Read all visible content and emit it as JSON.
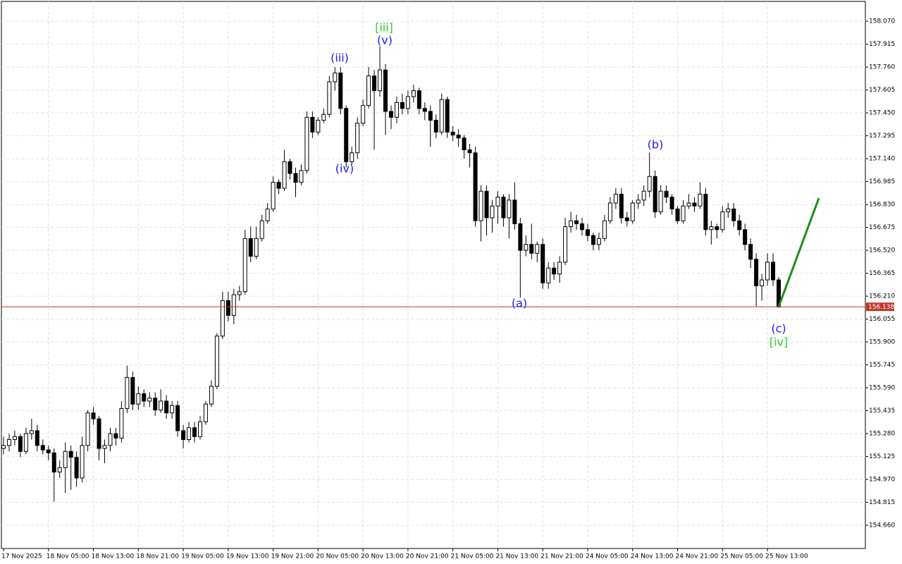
{
  "chart_data": {
    "type": "candlestick",
    "ylim": [
      154.503,
      158.204
    ],
    "yticks": [
      {
        "value": 158.07,
        "label": "158.070"
      },
      {
        "value": 157.915,
        "label": "157.915"
      },
      {
        "value": 157.76,
        "label": "157.760"
      },
      {
        "value": 157.605,
        "label": "157.605"
      },
      {
        "value": 157.45,
        "label": "157.450"
      },
      {
        "value": 157.295,
        "label": "157.295"
      },
      {
        "value": 157.14,
        "label": "157.140"
      },
      {
        "value": 156.985,
        "label": "156.985"
      },
      {
        "value": 156.83,
        "label": "156.830"
      },
      {
        "value": 156.675,
        "label": "156.675"
      },
      {
        "value": 156.52,
        "label": "156.520"
      },
      {
        "value": 156.365,
        "label": "156.365"
      },
      {
        "value": 156.21,
        "label": "156.210"
      },
      {
        "value": 156.055,
        "label": "156.055"
      },
      {
        "value": 155.9,
        "label": "155.900"
      },
      {
        "value": 155.745,
        "label": "155.745"
      },
      {
        "value": 155.59,
        "label": "155.590"
      },
      {
        "value": 155.435,
        "label": "155.435"
      },
      {
        "value": 155.28,
        "label": "155.280"
      },
      {
        "value": 155.125,
        "label": "155.125"
      },
      {
        "value": 154.97,
        "label": "154.970"
      },
      {
        "value": 154.815,
        "label": "154.815"
      },
      {
        "value": 154.66,
        "label": "154.660"
      }
    ],
    "xticks": [
      {
        "value": 0,
        "label": "17 Nov 2025"
      },
      {
        "value": 8,
        "label": "18 Nov 05:00"
      },
      {
        "value": 16,
        "label": "18 Nov 13:00"
      },
      {
        "value": 24,
        "label": "18 Nov 21:00"
      },
      {
        "value": 32,
        "label": "19 Nov 05:00"
      },
      {
        "value": 40,
        "label": "19 Nov 13:00"
      },
      {
        "value": 48,
        "label": "19 Nov 21:00"
      },
      {
        "value": 56,
        "label": "20 Nov 05:00"
      },
      {
        "value": 64,
        "label": "20 Nov 13:00"
      },
      {
        "value": 72,
        "label": "20 Nov 21:00"
      },
      {
        "value": 80,
        "label": "21 Nov 05:00"
      },
      {
        "value": 88,
        "label": "21 Nov 13:00"
      },
      {
        "value": 96,
        "label": "21 Nov 21:00"
      },
      {
        "value": 104,
        "label": "24 Nov 05:00"
      },
      {
        "value": 112,
        "label": "24 Nov 13:00"
      },
      {
        "value": 120,
        "label": "24 Nov 21:00"
      },
      {
        "value": 128,
        "label": "25 Nov 05:00"
      },
      {
        "value": 136,
        "label": "25 Nov 13:00"
      }
    ],
    "grid": true,
    "up_color": "#ffffff",
    "down_color": "#000000",
    "last_price": 156.138,
    "last_price_label": "156.138",
    "last_price_color": "#c0392b",
    "annotations": [
      {
        "text": "[iii]",
        "color": "#33cc33"
      },
      {
        "text": "(v)",
        "color": "#1a1aff"
      },
      {
        "text": "(iii)",
        "color": "#1a1aff"
      },
      {
        "text": "(iv)",
        "color": "#1a1aff"
      },
      {
        "text": "(a)",
        "color": "#1a1aff"
      },
      {
        "text": "(b)",
        "color": "#1a1aff"
      },
      {
        "text": "(c)",
        "color": "#1a1aff"
      },
      {
        "text": "[iv]",
        "color": "#33cc33"
      }
    ],
    "ohlc": [
      [
        155.18,
        155.26,
        155.14,
        155.2
      ],
      [
        155.2,
        155.28,
        155.16,
        155.24
      ],
      [
        155.24,
        155.3,
        155.2,
        155.26
      ],
      [
        155.26,
        155.28,
        155.12,
        155.16
      ],
      [
        155.16,
        155.32,
        155.14,
        155.28
      ],
      [
        155.28,
        155.38,
        155.24,
        155.3
      ],
      [
        155.3,
        155.34,
        155.16,
        155.2
      ],
      [
        155.2,
        155.24,
        155.14,
        155.17
      ],
      [
        155.17,
        155.2,
        155.1,
        155.15
      ],
      [
        155.15,
        155.18,
        154.82,
        155.02
      ],
      [
        155.02,
        155.1,
        154.98,
        155.05
      ],
      [
        155.05,
        155.22,
        154.88,
        155.16
      ],
      [
        155.16,
        155.2,
        154.9,
        155.12
      ],
      [
        155.12,
        155.16,
        154.92,
        154.98
      ],
      [
        154.98,
        155.26,
        154.95,
        155.2
      ],
      [
        155.2,
        155.44,
        155.16,
        155.42
      ],
      [
        155.42,
        155.46,
        155.34,
        155.38
      ],
      [
        155.38,
        155.4,
        155.1,
        155.18
      ],
      [
        155.18,
        155.24,
        155.08,
        155.2
      ],
      [
        155.2,
        155.32,
        155.16,
        155.28
      ],
      [
        155.28,
        155.32,
        155.2,
        155.25
      ],
      [
        155.25,
        155.5,
        155.22,
        155.45
      ],
      [
        155.45,
        155.74,
        155.42,
        155.66
      ],
      [
        155.66,
        155.7,
        155.44,
        155.48
      ],
      [
        155.48,
        155.6,
        155.44,
        155.55
      ],
      [
        155.55,
        155.58,
        155.46,
        155.5
      ],
      [
        155.5,
        155.56,
        155.46,
        155.52
      ],
      [
        155.52,
        155.56,
        155.4,
        155.44
      ],
      [
        155.44,
        155.58,
        155.42,
        155.5
      ],
      [
        155.5,
        155.54,
        155.38,
        155.42
      ],
      [
        155.42,
        155.5,
        155.38,
        155.47
      ],
      [
        155.47,
        155.5,
        155.26,
        155.3
      ],
      [
        155.3,
        155.34,
        155.18,
        155.24
      ],
      [
        155.24,
        155.36,
        155.22,
        155.32
      ],
      [
        155.32,
        155.36,
        155.22,
        155.26
      ],
      [
        155.26,
        155.4,
        155.24,
        155.36
      ],
      [
        155.36,
        155.5,
        155.34,
        155.48
      ],
      [
        155.48,
        155.64,
        155.46,
        155.6
      ],
      [
        155.6,
        155.96,
        155.58,
        155.94
      ],
      [
        155.94,
        156.24,
        155.92,
        156.18
      ],
      [
        156.18,
        156.24,
        156.04,
        156.08
      ],
      [
        156.08,
        156.26,
        156.02,
        156.22
      ],
      [
        156.22,
        156.28,
        156.18,
        156.24
      ],
      [
        156.24,
        156.66,
        156.22,
        156.6
      ],
      [
        156.6,
        156.68,
        156.44,
        156.48
      ],
      [
        156.48,
        156.68,
        156.46,
        156.6
      ],
      [
        156.6,
        156.76,
        156.58,
        156.72
      ],
      [
        156.72,
        156.84,
        156.7,
        156.8
      ],
      [
        156.8,
        157.02,
        156.78,
        156.98
      ],
      [
        156.98,
        157.0,
        156.9,
        156.94
      ],
      [
        156.94,
        157.2,
        156.92,
        157.12
      ],
      [
        157.12,
        157.14,
        157.0,
        157.04
      ],
      [
        157.04,
        157.08,
        156.88,
        156.98
      ],
      [
        156.98,
        157.1,
        156.96,
        157.06
      ],
      [
        157.06,
        157.46,
        157.04,
        157.42
      ],
      [
        157.42,
        157.46,
        157.28,
        157.32
      ],
      [
        157.32,
        157.42,
        157.3,
        157.4
      ],
      [
        157.4,
        157.48,
        157.38,
        157.44
      ],
      [
        157.44,
        157.7,
        157.42,
        157.66
      ],
      [
        157.66,
        157.76,
        157.6,
        157.72
      ],
      [
        157.72,
        157.76,
        157.44,
        157.48
      ],
      [
        157.48,
        157.5,
        157.08,
        157.12
      ],
      [
        157.12,
        157.22,
        157.1,
        157.18
      ],
      [
        157.18,
        157.42,
        157.14,
        157.38
      ],
      [
        157.38,
        157.54,
        157.36,
        157.5
      ],
      [
        157.5,
        157.76,
        157.48,
        157.7
      ],
      [
        157.7,
        157.74,
        157.2,
        157.6
      ],
      [
        157.6,
        157.9,
        157.56,
        157.74
      ],
      [
        157.74,
        157.78,
        157.3,
        157.46
      ],
      [
        157.46,
        157.5,
        157.34,
        157.42
      ],
      [
        157.42,
        157.56,
        157.38,
        157.52
      ],
      [
        157.52,
        157.58,
        157.44,
        157.48
      ],
      [
        157.48,
        157.6,
        157.44,
        157.56
      ],
      [
        157.56,
        157.64,
        157.52,
        157.6
      ],
      [
        157.6,
        157.62,
        157.44,
        157.48
      ],
      [
        157.48,
        157.52,
        157.4,
        157.46
      ],
      [
        157.46,
        157.5,
        157.22,
        157.4
      ],
      [
        157.4,
        157.44,
        157.28,
        157.32
      ],
      [
        157.32,
        157.58,
        157.3,
        157.54
      ],
      [
        157.54,
        157.56,
        157.28,
        157.32
      ],
      [
        157.32,
        157.36,
        157.26,
        157.3
      ],
      [
        157.3,
        157.34,
        157.22,
        157.28
      ],
      [
        157.28,
        157.3,
        157.14,
        157.2
      ],
      [
        157.2,
        157.24,
        157.08,
        157.18
      ],
      [
        157.18,
        157.22,
        156.68,
        156.72
      ],
      [
        156.72,
        156.96,
        156.58,
        156.92
      ],
      [
        156.92,
        156.96,
        156.62,
        156.74
      ],
      [
        156.74,
        156.86,
        156.64,
        156.82
      ],
      [
        156.82,
        156.92,
        156.7,
        156.88
      ],
      [
        156.88,
        156.9,
        156.68,
        156.74
      ],
      [
        156.74,
        156.9,
        156.6,
        156.86
      ],
      [
        156.86,
        156.98,
        156.66,
        156.7
      ],
      [
        156.7,
        156.74,
        156.2,
        156.52
      ],
      [
        156.52,
        156.62,
        156.48,
        156.56
      ],
      [
        156.56,
        156.7,
        156.46,
        156.5
      ],
      [
        156.5,
        156.58,
        156.44,
        156.56
      ],
      [
        156.56,
        156.6,
        156.26,
        156.3
      ],
      [
        156.3,
        156.44,
        156.26,
        156.4
      ],
      [
        156.4,
        156.44,
        156.32,
        156.36
      ],
      [
        156.36,
        156.48,
        156.3,
        156.44
      ],
      [
        156.44,
        156.74,
        156.42,
        156.68
      ],
      [
        156.68,
        156.78,
        156.64,
        156.72
      ],
      [
        156.72,
        156.76,
        156.66,
        156.7
      ],
      [
        156.7,
        156.74,
        156.62,
        156.66
      ],
      [
        156.66,
        156.7,
        156.58,
        156.62
      ],
      [
        156.62,
        156.64,
        156.52,
        156.56
      ],
      [
        156.56,
        156.64,
        156.52,
        156.6
      ],
      [
        156.6,
        156.76,
        156.58,
        156.72
      ],
      [
        156.72,
        156.88,
        156.7,
        156.84
      ],
      [
        156.84,
        156.94,
        156.8,
        156.9
      ],
      [
        156.9,
        156.94,
        156.7,
        156.74
      ],
      [
        156.74,
        156.78,
        156.68,
        156.72
      ],
      [
        156.72,
        156.86,
        156.7,
        156.84
      ],
      [
        156.84,
        156.9,
        156.8,
        156.86
      ],
      [
        156.86,
        156.96,
        156.82,
        156.92
      ],
      [
        156.92,
        157.18,
        156.88,
        157.02
      ],
      [
        157.02,
        157.06,
        156.74,
        156.78
      ],
      [
        156.78,
        156.96,
        156.76,
        156.92
      ],
      [
        156.92,
        156.96,
        156.84,
        156.88
      ],
      [
        156.88,
        156.9,
        156.76,
        156.8
      ],
      [
        156.8,
        156.82,
        156.7,
        156.72
      ],
      [
        156.72,
        156.86,
        156.7,
        156.82
      ],
      [
        156.82,
        156.9,
        156.8,
        156.84
      ],
      [
        156.84,
        156.88,
        156.78,
        156.82
      ],
      [
        156.82,
        156.98,
        156.8,
        156.9
      ],
      [
        156.9,
        156.94,
        156.62,
        156.66
      ],
      [
        156.66,
        156.72,
        156.56,
        156.68
      ],
      [
        156.68,
        156.7,
        156.6,
        156.66
      ],
      [
        156.66,
        156.82,
        156.64,
        156.78
      ],
      [
        156.78,
        156.84,
        156.74,
        156.8
      ],
      [
        156.8,
        156.84,
        156.68,
        156.72
      ],
      [
        156.72,
        156.76,
        156.62,
        156.66
      ],
      [
        156.66,
        156.7,
        156.52,
        156.56
      ],
      [
        156.56,
        156.6,
        156.4,
        156.46
      ],
      [
        156.46,
        156.5,
        156.14,
        156.28
      ],
      [
        156.28,
        156.36,
        156.18,
        156.32
      ],
      [
        156.32,
        156.5,
        156.28,
        156.44
      ],
      [
        156.44,
        156.5,
        156.28,
        156.32
      ],
      [
        156.32,
        156.34,
        156.13,
        156.138
      ]
    ]
  }
}
